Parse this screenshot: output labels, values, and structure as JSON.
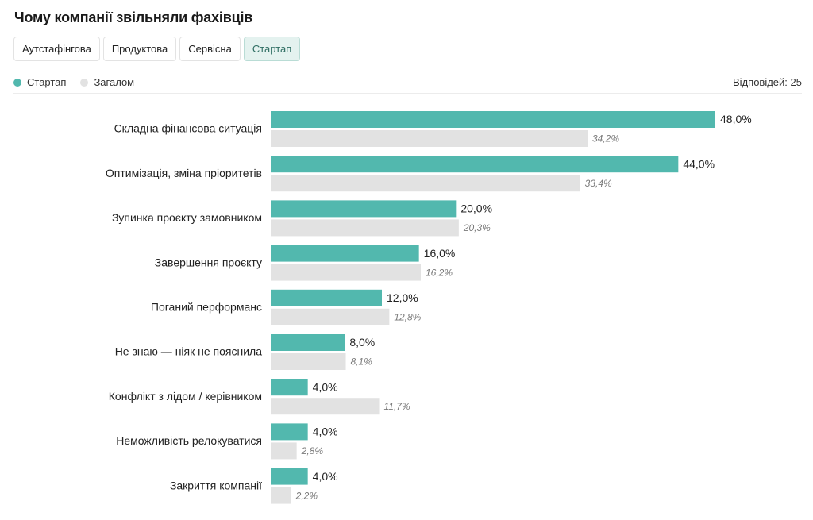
{
  "title": "Чому компанії звільняли фахівців",
  "tabs": [
    {
      "label": "Аутстафінгова",
      "active": false
    },
    {
      "label": "Продуктова",
      "active": false
    },
    {
      "label": "Сервісна",
      "active": false
    },
    {
      "label": "Стартап",
      "active": true
    }
  ],
  "legend": {
    "startup": "Стартап",
    "overall": "Загалом"
  },
  "responses": "Відповідей: 25",
  "colors": {
    "startup": "#52b8ae",
    "overall": "#e2e2e2"
  },
  "chart_data": {
    "type": "bar",
    "orientation": "horizontal",
    "categories": [
      "Складна фінансова ситуація",
      "Оптимізація, зміна пріоритетів",
      "Зупинка проєкту замовником",
      "Завершення проєкту",
      "Поганий перформанс",
      "Не знаю — ніяк не пояснила",
      "Конфлікт з лідом / керівником",
      "Неможливість релокуватися",
      "Закриття компанії"
    ],
    "series": [
      {
        "name": "Стартап",
        "values": [
          48.0,
          44.0,
          20.0,
          16.0,
          12.0,
          8.0,
          4.0,
          4.0,
          4.0
        ],
        "labels": [
          "48,0%",
          "44,0%",
          "20,0%",
          "16,0%",
          "12,0%",
          "8,0%",
          "4,0%",
          "4,0%",
          "4,0%"
        ]
      },
      {
        "name": "Загалом",
        "values": [
          34.2,
          33.4,
          20.3,
          16.2,
          12.8,
          8.1,
          11.7,
          2.8,
          2.2
        ],
        "labels": [
          "34,2%",
          "33,4%",
          "20,3%",
          "16,2%",
          "12,8%",
          "8,1%",
          "11,7%",
          "2,8%",
          "2,2%"
        ]
      }
    ],
    "xlim": [
      0,
      48
    ],
    "grid": false,
    "legend_position": "top-left"
  }
}
